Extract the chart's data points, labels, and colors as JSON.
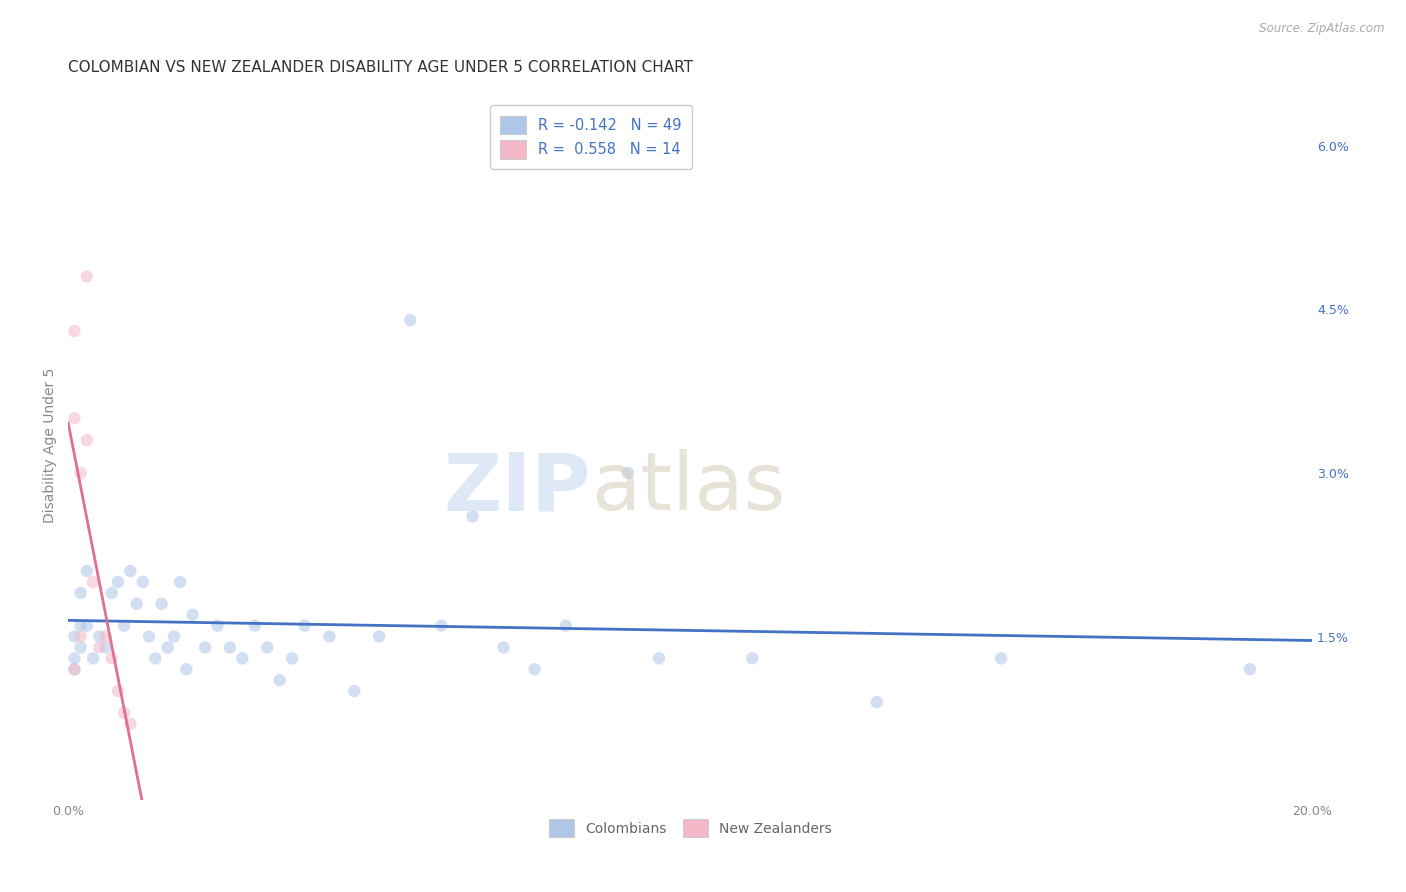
{
  "title": "COLOMBIAN VS NEW ZEALANDER DISABILITY AGE UNDER 5 CORRELATION CHART",
  "source": "Source: ZipAtlas.com",
  "ylabel": "Disability Age Under 5",
  "xlim": [
    0,
    0.2
  ],
  "ylim": [
    0,
    0.065
  ],
  "xtick_positions": [
    0.0,
    0.05,
    0.1,
    0.15,
    0.2
  ],
  "xtick_labels": [
    "0.0%",
    "",
    "",
    "",
    "20.0%"
  ],
  "ytick_positions": [
    0.0,
    0.015,
    0.03,
    0.045,
    0.06
  ],
  "ytick_labels_right": [
    "",
    "1.5%",
    "3.0%",
    "4.5%",
    "6.0%"
  ],
  "legend_r1": "R = -0.142",
  "legend_n1": "N = 49",
  "legend_r2": "R =  0.558",
  "legend_n2": "N = 14",
  "colombian_color": "#aec6e8",
  "nz_color": "#f4b8c8",
  "blue_line_color": "#4472c4",
  "pink_line_color": "#e07090",
  "colombians_x": [
    0.001,
    0.001,
    0.001,
    0.002,
    0.002,
    0.002,
    0.003,
    0.003,
    0.004,
    0.005,
    0.006,
    0.007,
    0.008,
    0.009,
    0.01,
    0.011,
    0.012,
    0.013,
    0.014,
    0.015,
    0.016,
    0.017,
    0.018,
    0.019,
    0.02,
    0.022,
    0.024,
    0.026,
    0.028,
    0.03,
    0.032,
    0.034,
    0.036,
    0.038,
    0.042,
    0.046,
    0.05,
    0.055,
    0.06,
    0.065,
    0.07,
    0.075,
    0.08,
    0.09,
    0.095,
    0.11,
    0.13,
    0.15,
    0.19
  ],
  "colombians_y": [
    0.015,
    0.013,
    0.012,
    0.019,
    0.016,
    0.014,
    0.021,
    0.016,
    0.013,
    0.015,
    0.014,
    0.019,
    0.02,
    0.016,
    0.021,
    0.018,
    0.02,
    0.015,
    0.013,
    0.018,
    0.014,
    0.015,
    0.02,
    0.012,
    0.017,
    0.014,
    0.016,
    0.014,
    0.013,
    0.016,
    0.014,
    0.011,
    0.013,
    0.016,
    0.015,
    0.01,
    0.015,
    0.044,
    0.016,
    0.026,
    0.014,
    0.012,
    0.016,
    0.03,
    0.013,
    0.013,
    0.009,
    0.013,
    0.012
  ],
  "nz_x": [
    0.001,
    0.001,
    0.001,
    0.002,
    0.002,
    0.003,
    0.003,
    0.004,
    0.005,
    0.006,
    0.007,
    0.008,
    0.009,
    0.01
  ],
  "nz_y": [
    0.043,
    0.035,
    0.012,
    0.03,
    0.015,
    0.048,
    0.033,
    0.02,
    0.014,
    0.015,
    0.013,
    0.01,
    0.008,
    0.007
  ],
  "dot_size": 80,
  "dot_alpha": 0.55,
  "grid_color": "#e0e0e0",
  "background_color": "#ffffff",
  "title_fontsize": 11,
  "axis_label_fontsize": 10,
  "tick_fontsize": 9,
  "source_fontsize": 8.5
}
